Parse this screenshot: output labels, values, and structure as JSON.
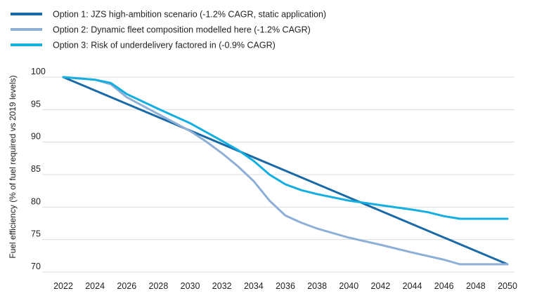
{
  "chart_data": {
    "type": "line",
    "title": "",
    "xlabel": "",
    "ylabel": "Fuel efficiency (% of fuel required vs 2019 levels)",
    "xlim": [
      2022,
      2050
    ],
    "ylim": [
      70,
      100
    ],
    "x_ticks": [
      2022,
      2024,
      2026,
      2028,
      2030,
      2032,
      2034,
      2036,
      2038,
      2040,
      2042,
      2044,
      2046,
      2048,
      2050
    ],
    "y_ticks": [
      70,
      75,
      80,
      85,
      90,
      95,
      100
    ],
    "grid": "horizontal",
    "legend_position": "top-left",
    "series": [
      {
        "name": "Option 1: JZS high-ambition scenario (-1.2% CAGR, static application)",
        "color": "#1b6aa8",
        "x": [
          2022,
          2050
        ],
        "values": [
          100,
          71.2
        ]
      },
      {
        "name": "Option 2: Dynamic fleet composition modelled here (-1.2% CAGR)",
        "color": "#8eafd6",
        "x": [
          2022,
          2024,
          2025,
          2026,
          2028,
          2030,
          2031,
          2032,
          2033,
          2034,
          2035,
          2036,
          2037,
          2038,
          2040,
          2042,
          2044,
          2046,
          2047,
          2048,
          2050
        ],
        "values": [
          100,
          99.6,
          98.9,
          96.9,
          94.3,
          91.7,
          90.1,
          88.3,
          86.3,
          84.0,
          81.0,
          78.7,
          77.6,
          76.7,
          75.3,
          74.2,
          73.0,
          71.9,
          71.2,
          71.2,
          71.2
        ]
      },
      {
        "name": "Option 3: Risk of underdelivery factored in (-0.9% CAGR)",
        "color": "#14aee0",
        "x": [
          2022,
          2024,
          2025,
          2026,
          2028,
          2030,
          2032,
          2033,
          2034,
          2035,
          2036,
          2037,
          2038,
          2040,
          2042,
          2044,
          2045,
          2046,
          2047,
          2048,
          2050
        ],
        "values": [
          100,
          99.6,
          99.1,
          97.4,
          95.1,
          92.9,
          90.2,
          88.8,
          87.1,
          85.0,
          83.5,
          82.6,
          82.0,
          81.0,
          80.3,
          79.6,
          79.2,
          78.6,
          78.2,
          78.2,
          78.2
        ]
      }
    ]
  }
}
